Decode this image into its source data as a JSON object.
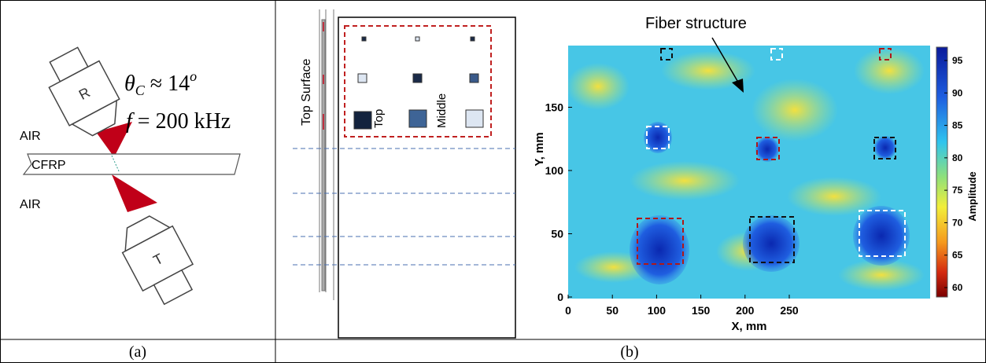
{
  "panel_a": {
    "transducers": [
      "R",
      "T"
    ],
    "equation": {
      "theta": "θ",
      "theta_sub": "C",
      "theta_rel": " ≈ 14",
      "theta_sup": "o",
      "f": "f",
      "f_rel": " = 200 kHz"
    },
    "air_labels": [
      "AIR",
      "AIR"
    ],
    "plate_label": "CFRP"
  },
  "panel_b": {
    "side_label": "Top Surface",
    "depth_labels": [
      "Top",
      "Middle"
    ],
    "heatmap": {
      "annotation": "Fiber structure",
      "x_label": "X, mm",
      "y_label": "Y, mm",
      "x_ticks": [
        0,
        50,
        100,
        150,
        200,
        250
      ],
      "y_ticks": [
        0,
        50,
        100,
        150
      ],
      "colorbar_label": "Amplitude",
      "colorbar_ticks": [
        95,
        90,
        85,
        80,
        75,
        70,
        65,
        60
      ]
    }
  },
  "captions": [
    "(a)",
    "(b)"
  ]
}
